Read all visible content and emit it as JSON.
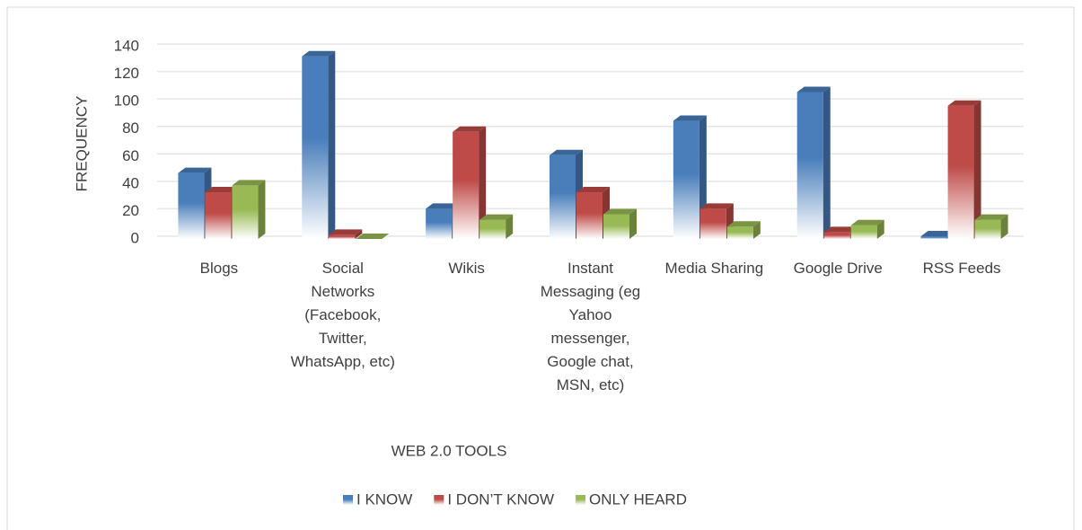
{
  "chart_data": {
    "type": "bar3d",
    "x_label": "WEB 2.0 TOOLS",
    "y_label": "FREQUENCY",
    "categories": [
      "Blogs",
      "Social Networks (Facebook, Twitter, WhatsApp, etc)",
      "Wikis",
      "Instant Messaging (eg Yahoo messenger, Google chat, MSN, etc)",
      "Media Sharing",
      "Google Drive",
      "RSS Feeds"
    ],
    "series": [
      {
        "name": "I KNOW",
        "color": "#4a7ebb",
        "values": [
          48,
          133,
          22,
          61,
          86,
          107,
          2
        ]
      },
      {
        "name": "I DON’T KNOW",
        "color": "#be4b48",
        "values": [
          34,
          3,
          78,
          34,
          22,
          5,
          97
        ]
      },
      {
        "name": "ONLY HEARD",
        "color": "#98b954",
        "values": [
          39,
          0,
          14,
          18,
          9,
          10,
          14
        ]
      }
    ],
    "ylim": [
      0,
      140
    ],
    "yticks": [
      0,
      20,
      40,
      60,
      80,
      100,
      120,
      140
    ],
    "grid": true,
    "legend": "bottom"
  }
}
